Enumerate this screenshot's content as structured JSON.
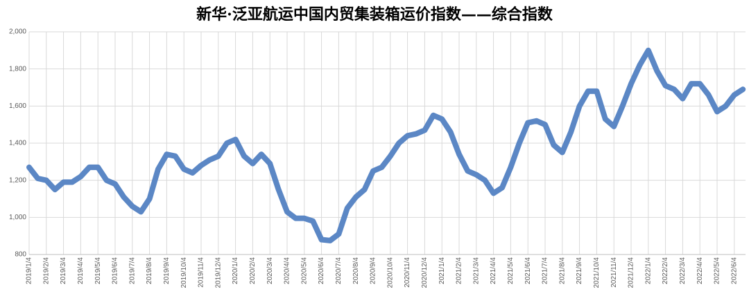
{
  "chart_data": {
    "type": "line",
    "title": "新华·泛亚航运中国内贸集装箱运价指数——综合指数",
    "categories": [
      "2019/1/4",
      null,
      "2019/2/4",
      null,
      "2019/3/4",
      null,
      "2019/4/4",
      null,
      "2019/5/4",
      null,
      "2019/6/4",
      null,
      "2019/7/4",
      null,
      "2019/8/4",
      null,
      "2019/9/4",
      null,
      "2019/10/4",
      null,
      "2019/11/4",
      null,
      "2019/12/4",
      null,
      "2020/1/4",
      null,
      "2020/2/4",
      null,
      "2020/3/4",
      null,
      "2020/4/4",
      null,
      "2020/5/4",
      null,
      "2020/6/4",
      null,
      "2020/7/4",
      null,
      "2020/8/4",
      null,
      "2020/9/4",
      null,
      "2020/10/4",
      null,
      "2020/11/4",
      null,
      "2020/12/4",
      null,
      "2021/1/4",
      null,
      "2021/2/4",
      null,
      "2021/3/4",
      null,
      "2021/4/4",
      null,
      "2021/5/4",
      null,
      "2021/6/4",
      null,
      "2021/7/4",
      null,
      "2021/8/4",
      null,
      "2021/9/4",
      null,
      "2021/10/4",
      null,
      "2021/11/4",
      null,
      "2021/12/4",
      null,
      "2022/1/4",
      null,
      "2022/2/4",
      null,
      "2022/3/4",
      null,
      "2022/4/4",
      null,
      "2022/5/4",
      null,
      "2022/6/4",
      null
    ],
    "series": [
      {
        "name": "综合指数",
        "color": "#5b87c5",
        "values": [
          1270,
          1210,
          1200,
          1150,
          1190,
          1190,
          1220,
          1270,
          1270,
          1200,
          1180,
          1110,
          1060,
          1030,
          1100,
          1260,
          1340,
          1330,
          1260,
          1240,
          1280,
          1310,
          1330,
          1400,
          1420,
          1330,
          1290,
          1340,
          1290,
          1150,
          1030,
          995,
          995,
          980,
          880,
          875,
          910,
          1050,
          1110,
          1150,
          1250,
          1270,
          1330,
          1400,
          1440,
          1450,
          1470,
          1550,
          1530,
          1460,
          1340,
          1250,
          1230,
          1200,
          1130,
          1160,
          1270,
          1400,
          1510,
          1520,
          1500,
          1390,
          1350,
          1460,
          1600,
          1680,
          1680,
          1530,
          1490,
          1600,
          1720,
          1820,
          1900,
          1790,
          1710,
          1690,
          1640,
          1720,
          1720,
          1660,
          1570,
          1600,
          1660,
          1690
        ]
      }
    ],
    "ylim": [
      800,
      2000
    ],
    "yticks": [
      800,
      {
        "value": 1000,
        "label": "1,000"
      },
      {
        "value": 1200,
        "label": "1,200"
      },
      {
        "value": 1400,
        "label": "1,400"
      },
      {
        "value": 1600,
        "label": "1,600"
      },
      {
        "value": 1800,
        "label": "1,800"
      },
      {
        "value": 2000,
        "label": "2,000"
      }
    ],
    "grid": true
  }
}
